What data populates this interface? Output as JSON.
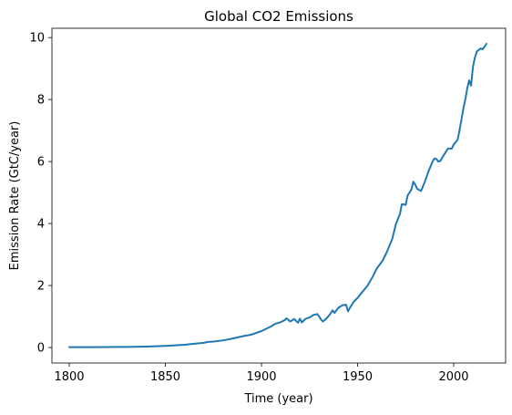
{
  "chart_data": {
    "type": "line",
    "title": "Global CO2 Emissions",
    "xlabel": "Time (year)",
    "ylabel": "Emission Rate (GtC/year)",
    "xlim": [
      1791,
      2027
    ],
    "ylim": [
      -0.5,
      10.3
    ],
    "x_ticks": [
      1800,
      1850,
      1900,
      1950,
      2000
    ],
    "y_ticks": [
      0,
      2,
      4,
      6,
      8,
      10
    ],
    "grid": false,
    "legend": "none",
    "series": [
      {
        "color": "#1f77b4",
        "points": [
          [
            1800,
            0.01
          ],
          [
            1810,
            0.01
          ],
          [
            1820,
            0.015
          ],
          [
            1830,
            0.02
          ],
          [
            1840,
            0.03
          ],
          [
            1850,
            0.05
          ],
          [
            1855,
            0.07
          ],
          [
            1860,
            0.09
          ],
          [
            1865,
            0.12
          ],
          [
            1870,
            0.15
          ],
          [
            1872,
            0.18
          ],
          [
            1875,
            0.19
          ],
          [
            1880,
            0.23
          ],
          [
            1885,
            0.29
          ],
          [
            1890,
            0.36
          ],
          [
            1895,
            0.42
          ],
          [
            1900,
            0.53
          ],
          [
            1905,
            0.68
          ],
          [
            1907,
            0.76
          ],
          [
            1910,
            0.82
          ],
          [
            1912,
            0.88
          ],
          [
            1913,
            0.94
          ],
          [
            1915,
            0.84
          ],
          [
            1917,
            0.92
          ],
          [
            1919,
            0.8
          ],
          [
            1920,
            0.93
          ],
          [
            1921,
            0.81
          ],
          [
            1923,
            0.93
          ],
          [
            1925,
            0.97
          ],
          [
            1927,
            1.05
          ],
          [
            1929,
            1.08
          ],
          [
            1930,
            1.0
          ],
          [
            1931,
            0.9
          ],
          [
            1932,
            0.84
          ],
          [
            1934,
            0.95
          ],
          [
            1936,
            1.1
          ],
          [
            1937,
            1.2
          ],
          [
            1938,
            1.12
          ],
          [
            1940,
            1.28
          ],
          [
            1942,
            1.36
          ],
          [
            1944,
            1.38
          ],
          [
            1945,
            1.17
          ],
          [
            1946,
            1.28
          ],
          [
            1948,
            1.48
          ],
          [
            1950,
            1.6
          ],
          [
            1952,
            1.76
          ],
          [
            1955,
            1.98
          ],
          [
            1958,
            2.3
          ],
          [
            1960,
            2.55
          ],
          [
            1963,
            2.8
          ],
          [
            1965,
            3.05
          ],
          [
            1968,
            3.5
          ],
          [
            1970,
            4.0
          ],
          [
            1972,
            4.3
          ],
          [
            1973,
            4.62
          ],
          [
            1974,
            4.62
          ],
          [
            1975,
            4.6
          ],
          [
            1976,
            4.9
          ],
          [
            1978,
            5.1
          ],
          [
            1979,
            5.35
          ],
          [
            1980,
            5.25
          ],
          [
            1981,
            5.12
          ],
          [
            1983,
            5.05
          ],
          [
            1985,
            5.35
          ],
          [
            1987,
            5.7
          ],
          [
            1989,
            6.0
          ],
          [
            1990,
            6.1
          ],
          [
            1991,
            6.08
          ],
          [
            1992,
            6.0
          ],
          [
            1993,
            6.02
          ],
          [
            1995,
            6.22
          ],
          [
            1997,
            6.42
          ],
          [
            1999,
            6.42
          ],
          [
            2000,
            6.55
          ],
          [
            2002,
            6.7
          ],
          [
            2003,
            7.0
          ],
          [
            2004,
            7.35
          ],
          [
            2005,
            7.7
          ],
          [
            2006,
            8.0
          ],
          [
            2007,
            8.35
          ],
          [
            2008,
            8.62
          ],
          [
            2009,
            8.45
          ],
          [
            2010,
            9.05
          ],
          [
            2011,
            9.35
          ],
          [
            2012,
            9.55
          ],
          [
            2013,
            9.6
          ],
          [
            2014,
            9.65
          ],
          [
            2015,
            9.62
          ],
          [
            2016,
            9.7
          ],
          [
            2017,
            9.8
          ]
        ]
      }
    ]
  }
}
